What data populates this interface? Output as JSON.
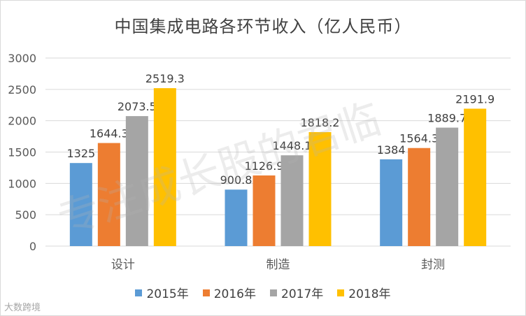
{
  "chart_data": {
    "type": "bar",
    "title": "中国集成电路各环节收入（亿人民币）",
    "categories": [
      "设计",
      "制造",
      "封测"
    ],
    "series": [
      {
        "name": "2015年",
        "color": "#5b9bd5",
        "values": [
          1325,
          900.8,
          1384
        ]
      },
      {
        "name": "2016年",
        "color": "#ed7d31",
        "values": [
          1644.3,
          1126.9,
          1564.3
        ]
      },
      {
        "name": "2017年",
        "color": "#a5a5a5",
        "values": [
          2073.5,
          1448.1,
          1889.7
        ]
      },
      {
        "name": "2018年",
        "color": "#ffc000",
        "values": [
          2519.3,
          1818.2,
          2191.9
        ]
      }
    ],
    "value_labels": [
      [
        "1325",
        "900.8",
        "1384"
      ],
      [
        "1644.3",
        "1126.9",
        "1564.3"
      ],
      [
        "2073.5",
        "1448.1",
        "1889.7"
      ],
      [
        "2519.3",
        "1818.2",
        "2191.9"
      ]
    ],
    "ylim": [
      0,
      3000
    ],
    "yticks": [
      0,
      500,
      1000,
      1500,
      2000,
      2500,
      3000
    ],
    "gridlines": true,
    "legend_position": "bottom"
  },
  "watermark": "专注成长股的君临",
  "source_logo": "大数跨境"
}
